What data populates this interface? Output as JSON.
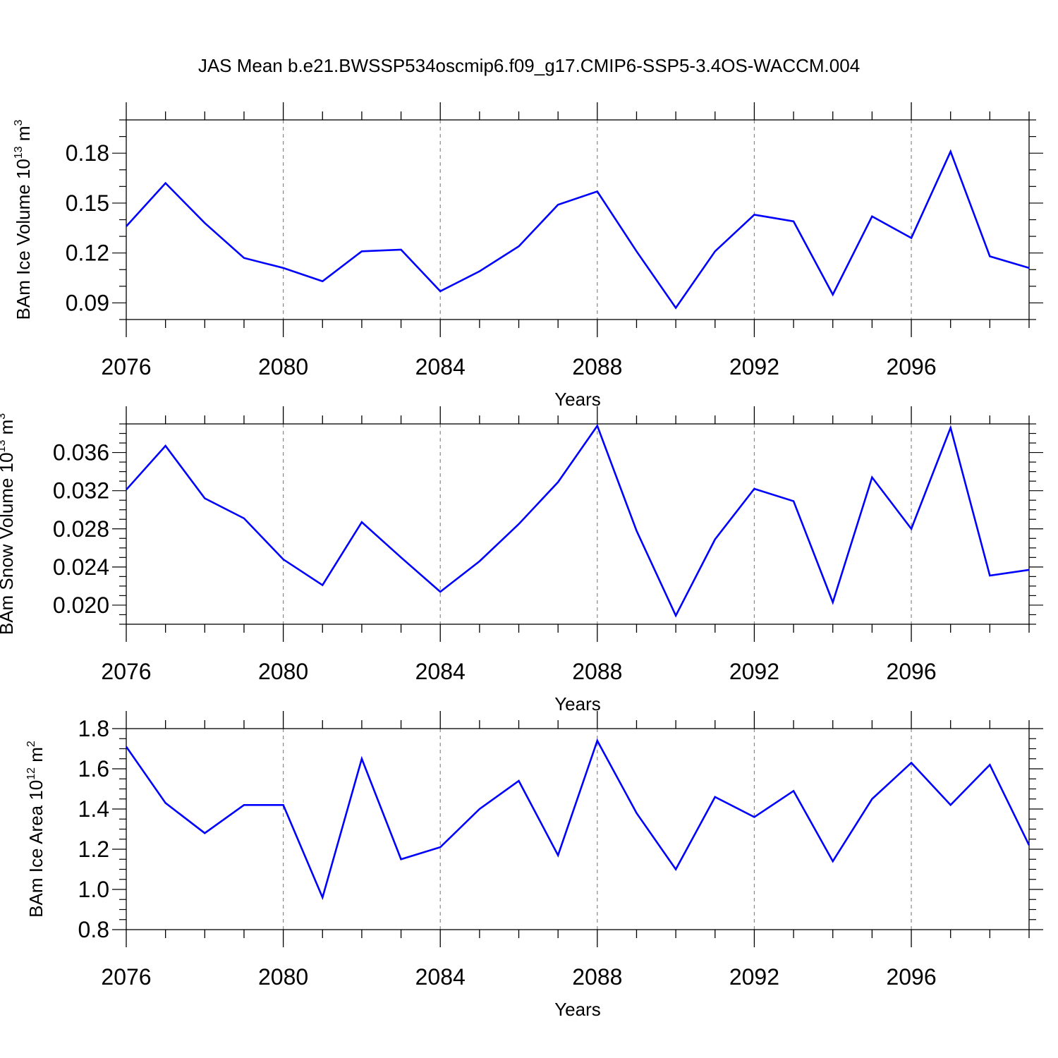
{
  "title": "JAS Mean b.e21.BWSSP534oscmip6.f09_g17.CMIP6-SSP5-3.4OS-WACCM.004",
  "colors": {
    "line": "#0000ff",
    "axis": "#000000",
    "grid": "#888888"
  },
  "chart_data": [
    {
      "type": "line",
      "ylabel": "BAm Ice Volume 10",
      "ylabel_exp": "13",
      "ylabel_unit": "m",
      "ylabel_unit_exp": "3",
      "xlabel": "Years",
      "xlim": [
        2076,
        2099
      ],
      "ylim": [
        0.08,
        0.2
      ],
      "yticks": [
        0.09,
        0.12,
        0.15,
        0.18
      ],
      "ytick_labels": [
        "0.09",
        "0.12",
        "0.15",
        "0.18"
      ],
      "yminor_step": 0.01,
      "xticks": [
        2076,
        2080,
        2084,
        2088,
        2092,
        2096
      ],
      "xtick_labels": [
        "2076",
        "2080",
        "2084",
        "2088",
        "2092",
        "2096"
      ],
      "x": [
        2076,
        2077,
        2078,
        2079,
        2080,
        2081,
        2082,
        2083,
        2084,
        2085,
        2086,
        2087,
        2088,
        2089,
        2090,
        2091,
        2092,
        2093,
        2094,
        2095,
        2096,
        2097,
        2098,
        2099
      ],
      "values": [
        0.136,
        0.162,
        0.138,
        0.117,
        0.111,
        0.103,
        0.121,
        0.122,
        0.097,
        0.109,
        0.124,
        0.149,
        0.157,
        0.121,
        0.087,
        0.121,
        0.143,
        0.139,
        0.095,
        0.142,
        0.129,
        0.181,
        0.118,
        0.111
      ]
    },
    {
      "type": "line",
      "ylabel": "BAm Snow Volume 10",
      "ylabel_exp": "13",
      "ylabel_unit": "m",
      "ylabel_unit_exp": "3",
      "xlabel": "Years",
      "xlim": [
        2076,
        2099
      ],
      "ylim": [
        0.018,
        0.039
      ],
      "yticks": [
        0.02,
        0.024,
        0.028,
        0.032,
        0.036
      ],
      "ytick_labels": [
        "0.020",
        "0.024",
        "0.028",
        "0.032",
        "0.036"
      ],
      "yminor_step": 0.001,
      "xticks": [
        2076,
        2080,
        2084,
        2088,
        2092,
        2096
      ],
      "xtick_labels": [
        "2076",
        "2080",
        "2084",
        "2088",
        "2092",
        "2096"
      ],
      "x": [
        2076,
        2077,
        2078,
        2079,
        2080,
        2081,
        2082,
        2083,
        2084,
        2085,
        2086,
        2087,
        2088,
        2089,
        2090,
        2091,
        2092,
        2093,
        2094,
        2095,
        2096,
        2097,
        2098,
        2099
      ],
      "values": [
        0.0321,
        0.0367,
        0.0312,
        0.0291,
        0.0248,
        0.0221,
        0.0287,
        0.025,
        0.0214,
        0.0246,
        0.0285,
        0.0329,
        0.0388,
        0.0278,
        0.0189,
        0.0269,
        0.0322,
        0.0309,
        0.0203,
        0.0334,
        0.028,
        0.0386,
        0.0231,
        0.0237
      ]
    },
    {
      "type": "line",
      "ylabel": "BAm Ice Area 10",
      "ylabel_exp": "12",
      "ylabel_unit": "m",
      "ylabel_unit_exp": "2",
      "xlabel": "Years",
      "xlim": [
        2076,
        2099
      ],
      "ylim": [
        0.8,
        1.8
      ],
      "yticks": [
        0.8,
        1.0,
        1.2,
        1.4,
        1.6,
        1.8
      ],
      "ytick_labels": [
        "0.8",
        "1.0",
        "1.2",
        "1.4",
        "1.6",
        "1.8"
      ],
      "yminor_step": 0.05,
      "xticks": [
        2076,
        2080,
        2084,
        2088,
        2092,
        2096
      ],
      "xtick_labels": [
        "2076",
        "2080",
        "2084",
        "2088",
        "2092",
        "2096"
      ],
      "x": [
        2076,
        2077,
        2078,
        2079,
        2080,
        2081,
        2082,
        2083,
        2084,
        2085,
        2086,
        2087,
        2088,
        2089,
        2090,
        2091,
        2092,
        2093,
        2094,
        2095,
        2096,
        2097,
        2098,
        2099
      ],
      "values": [
        1.71,
        1.43,
        1.28,
        1.42,
        1.42,
        0.96,
        1.65,
        1.15,
        1.21,
        1.4,
        1.54,
        1.17,
        1.74,
        1.38,
        1.1,
        1.46,
        1.36,
        1.49,
        1.14,
        1.45,
        1.63,
        1.42,
        1.62,
        1.22
      ]
    }
  ]
}
